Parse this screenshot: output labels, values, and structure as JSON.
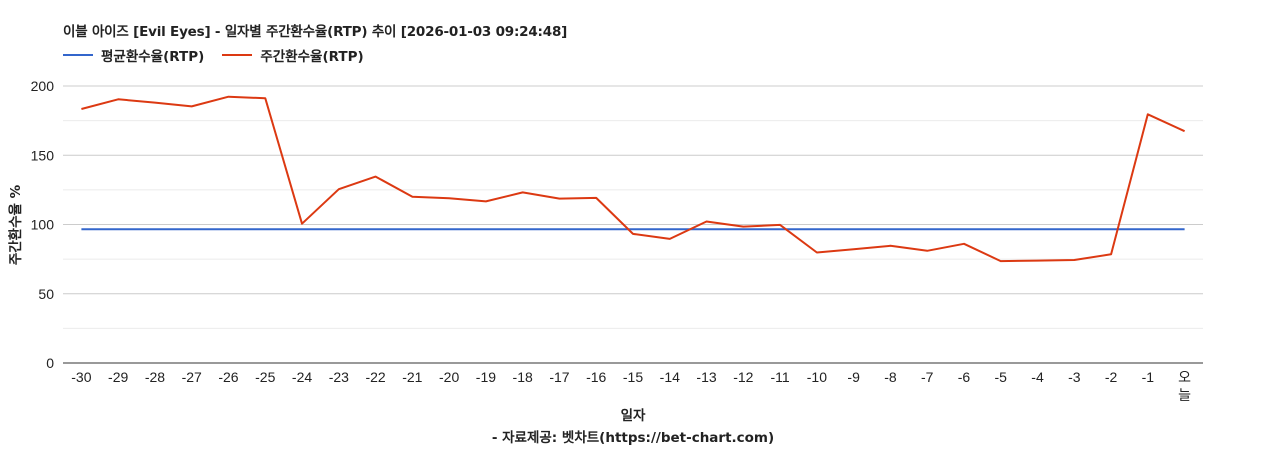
{
  "title": "이블 아이즈 [Evil Eyes] - 일자별 주간환수율(RTP) 추이 [2026-01-03 09:24:48]",
  "legend": [
    {
      "label": "평균환수율(RTP)",
      "color": "#3366cc"
    },
    {
      "label": "주간환수율(RTP)",
      "color": "#dc3912"
    }
  ],
  "footer": "- 자료제공: 벳차트(https://bet-chart.com)",
  "chart_data": {
    "type": "line",
    "title": "이블 아이즈 [Evil Eyes] - 일자별 주간환수율(RTP) 추이 [2026-01-03 09:24:48]",
    "xlabel": "일자",
    "ylabel": "주간환수율 %",
    "ylim": [
      0,
      200
    ],
    "yticks": [
      0,
      50,
      100,
      150,
      200
    ],
    "grid": true,
    "legend_position": "top",
    "categories": [
      "-30",
      "-29",
      "-28",
      "-27",
      "-26",
      "-25",
      "-24",
      "-23",
      "-22",
      "-21",
      "-20",
      "-19",
      "-18",
      "-17",
      "-16",
      "-15",
      "-14",
      "-13",
      "-12",
      "-11",
      "-10",
      "-9",
      "-8",
      "-7",
      "-6",
      "-5",
      "-4",
      "-3",
      "-2",
      "-1",
      "오늘"
    ],
    "series": [
      {
        "name": "평균환수율(RTP)",
        "color": "#3366cc",
        "values": [
          96.6,
          96.6,
          96.6,
          96.6,
          96.6,
          96.6,
          96.6,
          96.6,
          96.6,
          96.6,
          96.6,
          96.6,
          96.6,
          96.6,
          96.6,
          96.6,
          96.6,
          96.6,
          96.6,
          96.6,
          96.6,
          96.6,
          96.6,
          96.6,
          96.6,
          96.6,
          96.6,
          96.6,
          96.6,
          96.6,
          96.6
        ]
      },
      {
        "name": "주간환수율(RTP)",
        "color": "#dc3912",
        "values": [
          183.4,
          190.4,
          188.0,
          185.3,
          192.3,
          191.1,
          100.6,
          125.5,
          134.6,
          120.0,
          119.0,
          116.7,
          123.2,
          118.7,
          119.2,
          93.2,
          89.6,
          102.2,
          98.5,
          99.7,
          79.8,
          82.2,
          84.6,
          81.0,
          86.1,
          73.6,
          73.9,
          74.4,
          78.5,
          179.6,
          167.4
        ]
      }
    ],
    "footer": "- 자료제공: 벳차트(https://bet-chart.com)"
  }
}
